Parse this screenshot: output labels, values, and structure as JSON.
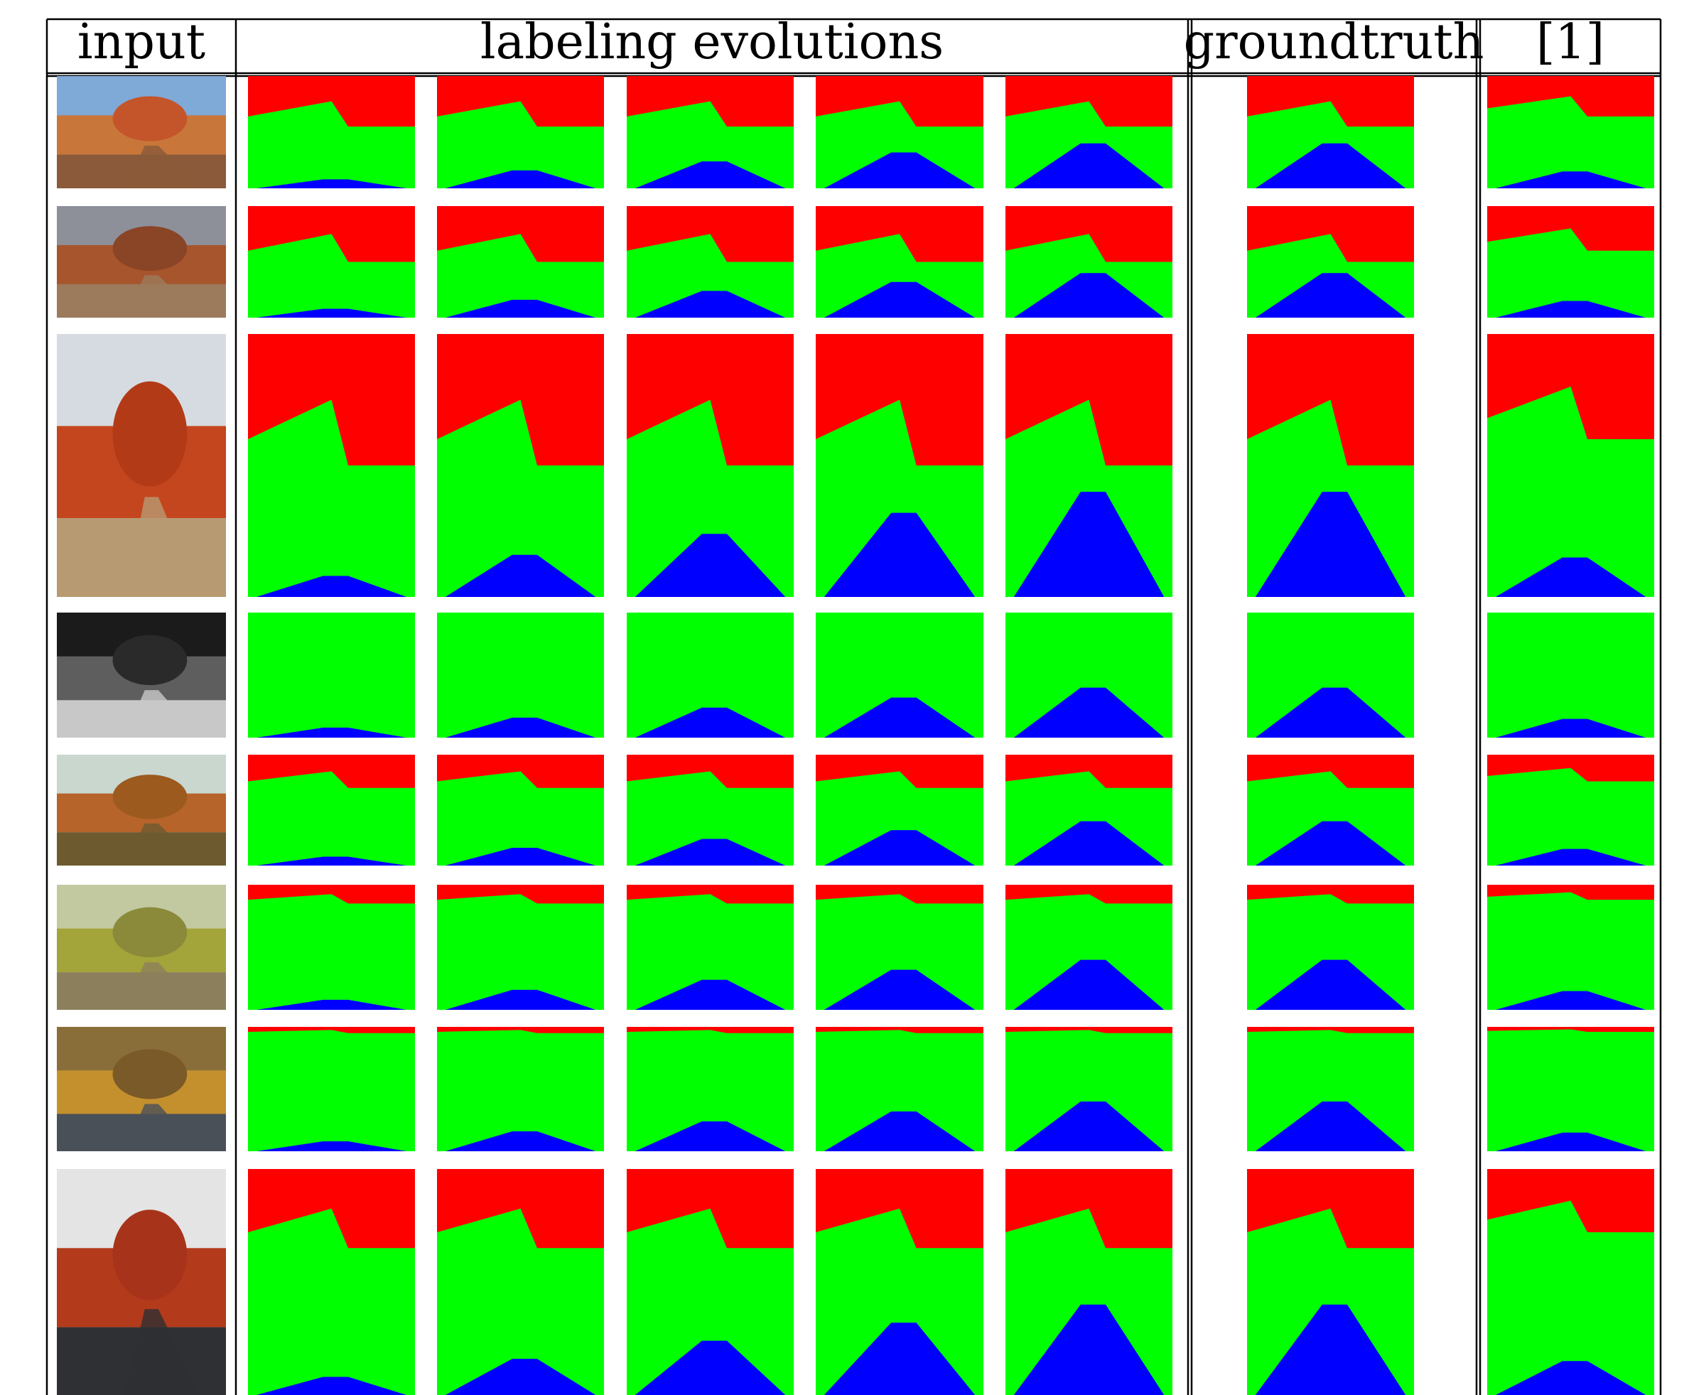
{
  "table": {
    "headers": {
      "input": "input",
      "labeling_evolutions": "labeling evolutions",
      "groundtruth": "groundtruth",
      "ref1": "[1]"
    }
  },
  "legend_colors": {
    "sky": "#ff0000",
    "vegetation": "#00ff00",
    "road": "#0000ff"
  },
  "rows": [
    {
      "photo": {
        "sky": "#7fa9d6",
        "mid": "#c9763a",
        "ground": "#8a5a3a",
        "tree": "#c4552a"
      }
    },
    {
      "photo": {
        "sky": "#8d8f99",
        "mid": "#a7552c",
        "ground": "#9c7a5c",
        "tree": "#8a4426"
      }
    },
    {
      "photo": {
        "sky": "#d6dbe2",
        "mid": "#c4461e",
        "ground": "#b89a72",
        "tree": "#b33a16"
      }
    },
    {
      "photo": {
        "sky": "#1b1b1b",
        "mid": "#5e5e5e",
        "ground": "#c8c8c8",
        "tree": "#2a2a2a"
      }
    },
    {
      "photo": {
        "sky": "#c9d7cf",
        "mid": "#b7642a",
        "ground": "#6d5a2f",
        "tree": "#9c5a1e"
      }
    },
    {
      "photo": {
        "sky": "#c2c9a0",
        "mid": "#a3a43a",
        "ground": "#8c7f5c",
        "tree": "#8a8a3a"
      }
    },
    {
      "photo": {
        "sky": "#8a6e3a",
        "mid": "#c4902e",
        "ground": "#4a5058",
        "tree": "#7a5a28"
      }
    },
    {
      "photo": {
        "sky": "#e4e4e4",
        "mid": "#b33a1a",
        "ground": "#2e3033",
        "tree": "#a7341a"
      }
    }
  ]
}
